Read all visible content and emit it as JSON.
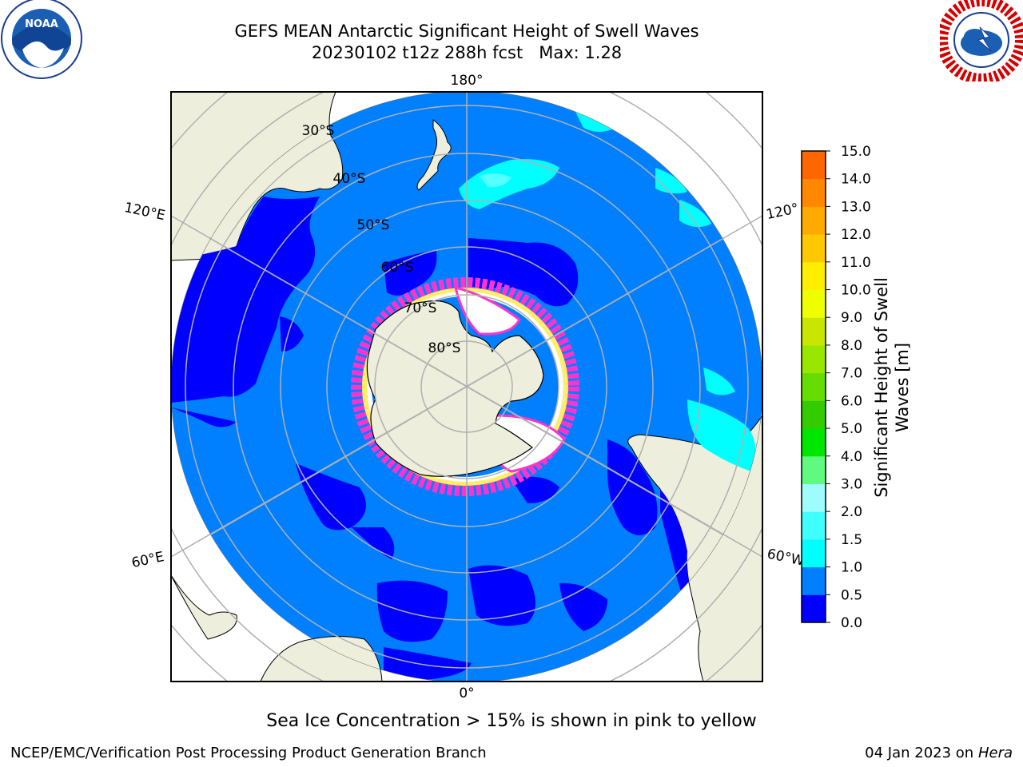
{
  "title": {
    "line1": "GEFS MEAN Antarctic Significant Height of Swell Waves",
    "line2": "20230102 t12z 288h fcst   Max: 1.28"
  },
  "logos": {
    "left": {
      "text": "NOAA",
      "icon": "noaa-logo"
    },
    "right": {
      "icon": "national-weather-service-logo"
    }
  },
  "map": {
    "projection": "south-polar-stereographic",
    "meridian_labels": [
      "180°",
      "120°E",
      "120°",
      "60°E",
      "60°W",
      "0°"
    ],
    "latitude_labels": [
      "30°S",
      "40°S",
      "50°S",
      "60°S",
      "70°S",
      "80°S"
    ],
    "colors": {
      "ocean_light": "#0080ff",
      "ocean_dark": "#0000ff",
      "land": "#eeeedc",
      "swell_cyan": "#00ffff",
      "swell_light_cyan": "#55ffff",
      "ice_pink": "#ff33cc",
      "ice_yellow": "#ffee66",
      "ice_white": "#ffffff",
      "grid": "#b0b0b0"
    }
  },
  "colorbar": {
    "label_line1": "Significant Height of Swell",
    "label_line2": "Waves [m]",
    "ticks": [
      "15.0",
      "14.0",
      "13.0",
      "12.0",
      "11.0",
      "10.0",
      "9.0",
      "8.0",
      "7.0",
      "6.0",
      "5.0",
      "4.0",
      "3.0",
      "2.0",
      "1.5",
      "1.0",
      "0.5",
      "0.0"
    ],
    "colors": [
      "#0000ff",
      "#0080ff",
      "#00ffff",
      "#40ffff",
      "#9ffcfc",
      "#60fa80",
      "#00e600",
      "#33cc00",
      "#66dd00",
      "#99e600",
      "#c8e600",
      "#eeff00",
      "#ffee00",
      "#ffc800",
      "#ffaa00",
      "#ff8800",
      "#ff6600",
      "#ff3300",
      "#ff0000"
    ]
  },
  "note": "Sea Ice Concentration > 15% is shown in pink to yellow",
  "footer": {
    "left": "NCEP/EMC/Verification Post Processing Product Generation Branch",
    "date": "04 Jan 2023 on ",
    "host": "Hera"
  }
}
